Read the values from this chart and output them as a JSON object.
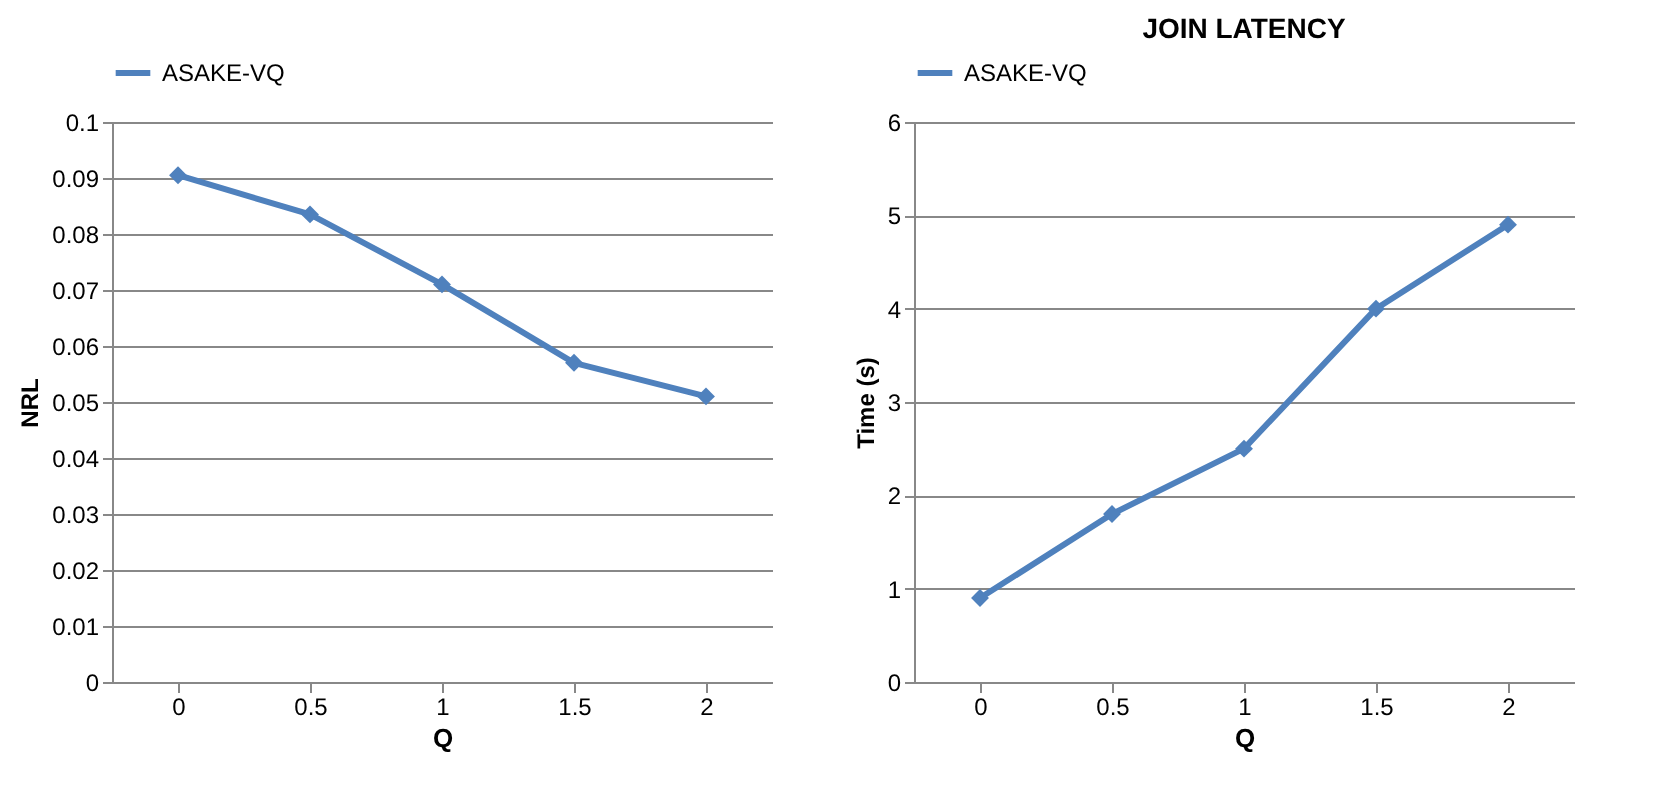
{
  "chart_data": [
    {
      "type": "line",
      "xlabel": "Q",
      "ylabel": "NRL",
      "categories": [
        "0",
        "0.5",
        "1",
        "1.5",
        "2"
      ],
      "series": [
        {
          "name": "ASAKE-VQ",
          "color": "#4f81bd",
          "values": [
            0.0905,
            0.0835,
            0.071,
            0.057,
            0.051
          ]
        }
      ],
      "ylim": [
        0,
        0.1
      ],
      "yticks": [
        0,
        0.01,
        0.02,
        0.03,
        0.04,
        0.05,
        0.06,
        0.07,
        0.08,
        0.09,
        0.1
      ],
      "grid": "y",
      "legend": "top",
      "marker": "diamond",
      "line_style": "solid"
    },
    {
      "type": "line",
      "title": "JOIN LATENCY",
      "xlabel": "Q",
      "ylabel": "Time (s)",
      "categories": [
        "0",
        "0.5",
        "1",
        "1.5",
        "2"
      ],
      "series": [
        {
          "name": "ASAKE-VQ",
          "color": "#4f81bd",
          "values": [
            0.9,
            1.8,
            2.5,
            4.0,
            4.9
          ]
        }
      ],
      "ylim": [
        0,
        6
      ],
      "yticks": [
        0,
        1,
        2,
        3,
        4,
        5,
        6
      ],
      "grid": "y",
      "legend": "top",
      "marker": "diamond",
      "line_style": "solid"
    }
  ]
}
